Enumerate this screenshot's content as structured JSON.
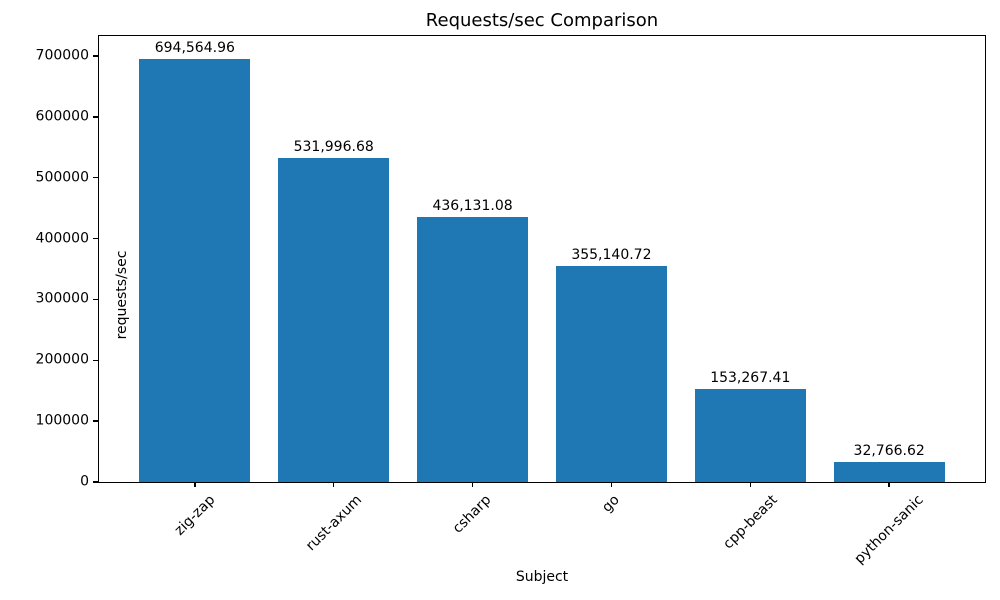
{
  "chart_data": {
    "type": "bar",
    "title": "Requests/sec Comparison",
    "xlabel": "Subject",
    "ylabel": "requests/sec",
    "categories": [
      "zig-zap",
      "rust-axum",
      "csharp",
      "go",
      "cpp-beast",
      "python-sanic"
    ],
    "values": [
      694564.96,
      531996.68,
      436131.08,
      355140.72,
      153267.41,
      32766.62
    ],
    "value_labels": [
      "694,564.96",
      "531,996.68",
      "436,131.08",
      "355,140.72",
      "153,267.41",
      "32,766.62"
    ],
    "yticks": [
      0,
      100000,
      200000,
      300000,
      400000,
      500000,
      600000,
      700000
    ],
    "ylim": [
      0,
      733000
    ],
    "xtick_rotation_deg": 45,
    "bar_color": "#1f77b4",
    "text_color": "#000000",
    "background_color": "#ffffff",
    "grid": false,
    "legend": false
  }
}
